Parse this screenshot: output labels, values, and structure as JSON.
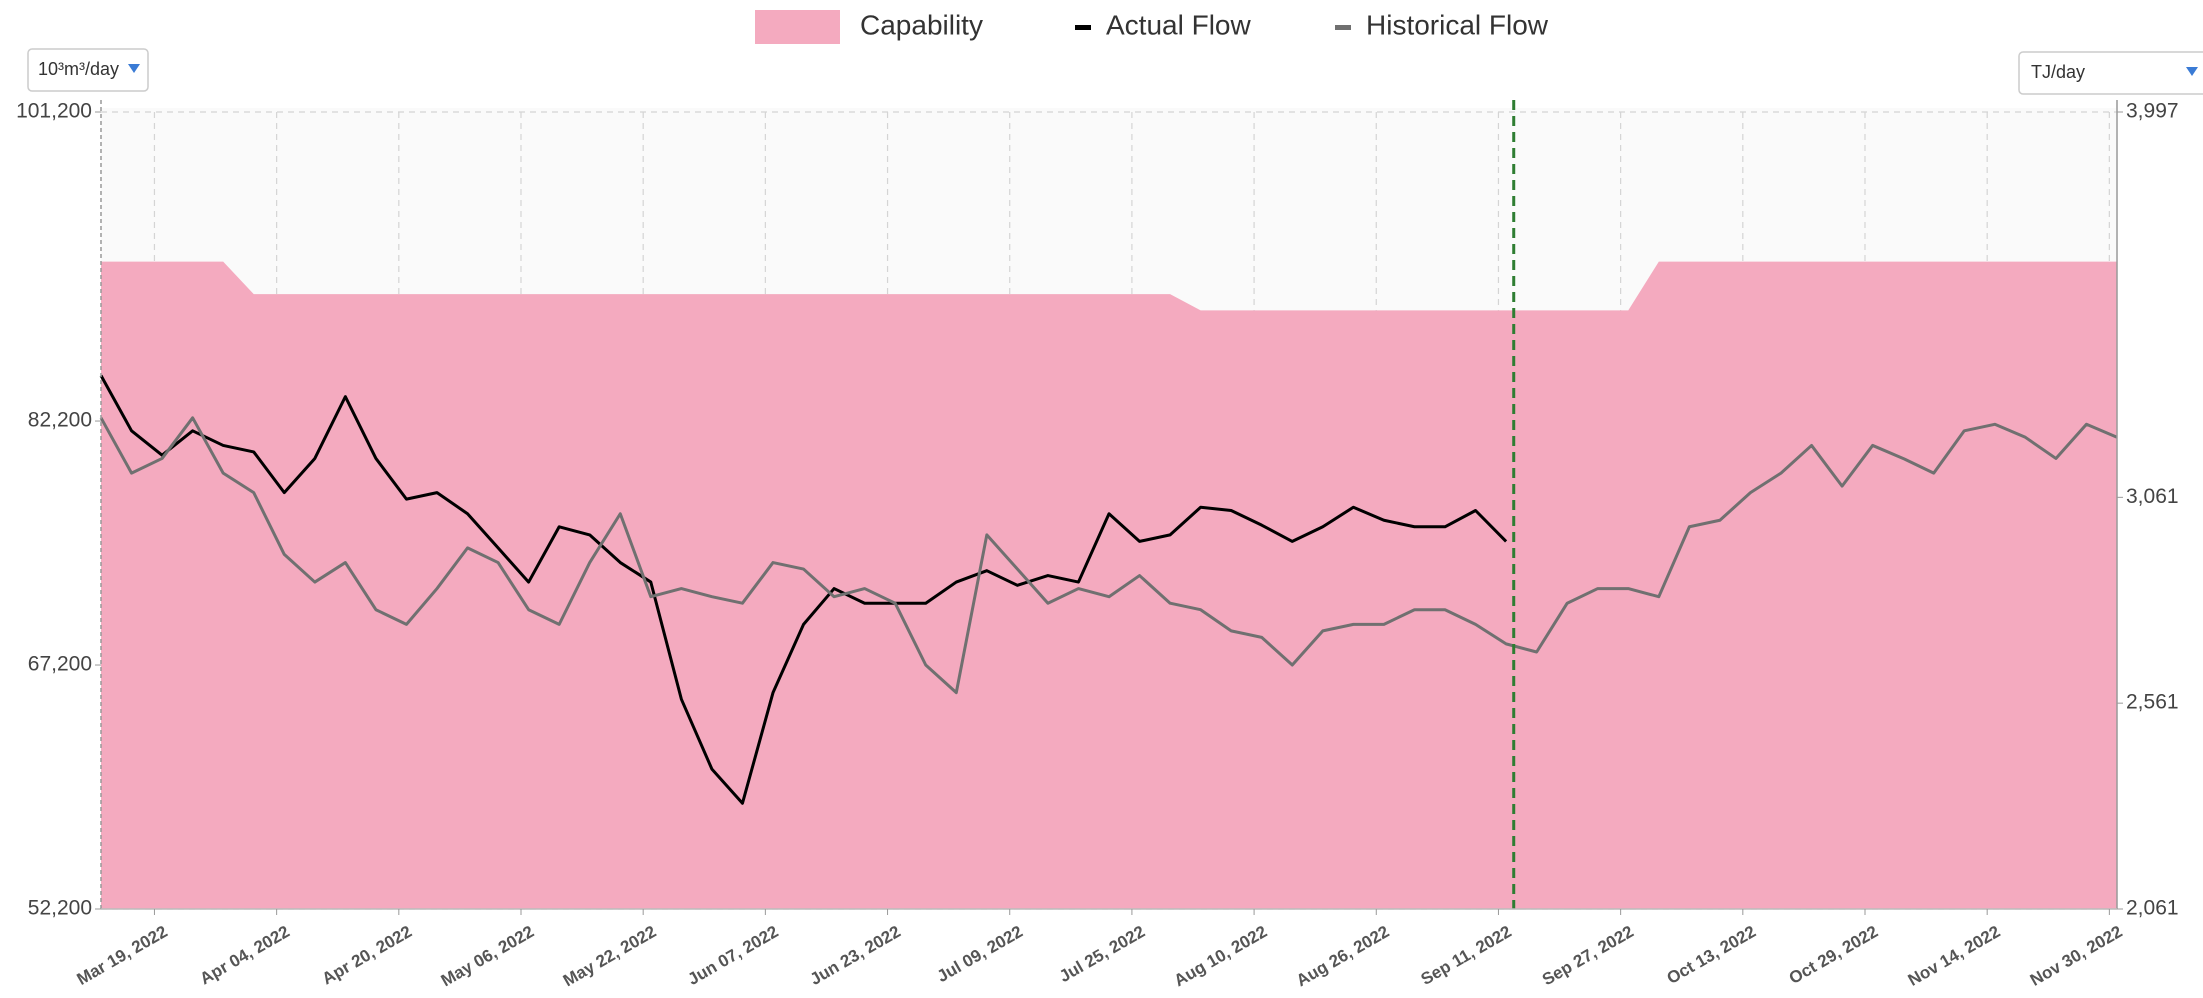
{
  "chart_data": {
    "type": "line",
    "units_left": "10³m³/day",
    "units_right": "TJ/day",
    "legend": "top",
    "grid": true,
    "marker_date": "2022-09-13",
    "marker_color": "#2e7d32",
    "xlim": [
      "2022-03-12",
      "2022-12-01"
    ],
    "xticks": [
      {
        "value": "2022-03-19",
        "label": "Mar 19, 2022"
      },
      {
        "value": "2022-04-04",
        "label": "Apr 04, 2022"
      },
      {
        "value": "2022-04-20",
        "label": "Apr 20, 2022"
      },
      {
        "value": "2022-05-06",
        "label": "May 06, 2022"
      },
      {
        "value": "2022-05-22",
        "label": "May 22, 2022"
      },
      {
        "value": "2022-06-07",
        "label": "Jun 07, 2022"
      },
      {
        "value": "2022-06-23",
        "label": "Jun 23, 2022"
      },
      {
        "value": "2022-07-09",
        "label": "Jul 09, 2022"
      },
      {
        "value": "2022-07-25",
        "label": "Jul 25, 2022"
      },
      {
        "value": "2022-08-10",
        "label": "Aug 10, 2022"
      },
      {
        "value": "2022-08-26",
        "label": "Aug 26, 2022"
      },
      {
        "value": "2022-09-11",
        "label": "Sep 11, 2022"
      },
      {
        "value": "2022-09-27",
        "label": "Sep 27, 2022"
      },
      {
        "value": "2022-10-13",
        "label": "Oct 13, 2022"
      },
      {
        "value": "2022-10-29",
        "label": "Oct 29, 2022"
      },
      {
        "value": "2022-11-14",
        "label": "Nov 14, 2022"
      },
      {
        "value": "2022-11-30",
        "label": "Nov 30, 2022"
      }
    ],
    "ylim": [
      52200,
      101200
    ],
    "yticks": [
      {
        "value": 52200,
        "label": "52,200"
      },
      {
        "value": 67200,
        "label": "67,200"
      },
      {
        "value": 82200,
        "label": "82,200"
      },
      {
        "value": 101200,
        "label": "101,200"
      }
    ],
    "y2lim": [
      2061,
      3997
    ],
    "y2ticks": [
      {
        "value": 2061,
        "label": "2,061"
      },
      {
        "value": 2561,
        "label": "2,561"
      },
      {
        "value": 3061,
        "label": "3,061"
      },
      {
        "value": 3997,
        "label": "3,997"
      }
    ],
    "x": [
      "2022-03-12",
      "2022-03-16",
      "2022-03-20",
      "2022-03-24",
      "2022-03-28",
      "2022-04-01",
      "2022-04-05",
      "2022-04-09",
      "2022-04-13",
      "2022-04-17",
      "2022-04-21",
      "2022-04-25",
      "2022-04-29",
      "2022-05-03",
      "2022-05-07",
      "2022-05-11",
      "2022-05-15",
      "2022-05-19",
      "2022-05-23",
      "2022-05-27",
      "2022-05-31",
      "2022-06-04",
      "2022-06-08",
      "2022-06-12",
      "2022-06-16",
      "2022-06-20",
      "2022-06-24",
      "2022-06-28",
      "2022-07-02",
      "2022-07-06",
      "2022-07-10",
      "2022-07-14",
      "2022-07-18",
      "2022-07-22",
      "2022-07-26",
      "2022-07-30",
      "2022-08-03",
      "2022-08-07",
      "2022-08-11",
      "2022-08-15",
      "2022-08-19",
      "2022-08-23",
      "2022-08-27",
      "2022-08-31",
      "2022-09-04",
      "2022-09-08",
      "2022-09-12",
      "2022-09-16",
      "2022-09-20",
      "2022-09-24",
      "2022-09-28",
      "2022-10-02",
      "2022-10-06",
      "2022-10-10",
      "2022-10-14",
      "2022-10-18",
      "2022-10-22",
      "2022-10-26",
      "2022-10-30",
      "2022-11-03",
      "2022-11-07",
      "2022-11-11",
      "2022-11-15",
      "2022-11-19",
      "2022-11-23",
      "2022-11-27",
      "2022-12-01"
    ],
    "series": [
      {
        "name": "Capability",
        "type": "area",
        "color": "#f4aabf",
        "values": [
          92000,
          92000,
          92000,
          92000,
          92000,
          90000,
          90000,
          90000,
          90000,
          90000,
          90000,
          90000,
          90000,
          90000,
          90000,
          90000,
          90000,
          90000,
          90000,
          90000,
          90000,
          90000,
          90000,
          90000,
          90000,
          90000,
          90000,
          90000,
          90000,
          90000,
          90000,
          90000,
          90000,
          90000,
          90000,
          90000,
          89000,
          89000,
          89000,
          89000,
          89000,
          89000,
          89000,
          89000,
          89000,
          89000,
          89000,
          89000,
          89000,
          89000,
          89000,
          92000,
          92000,
          92000,
          92000,
          92000,
          92000,
          92000,
          92000,
          92000,
          92000,
          92000,
          92000,
          92000,
          92000,
          92000,
          92000
        ]
      },
      {
        "name": "Actual Flow",
        "type": "line",
        "color": "#000000",
        "values": [
          85000,
          81600,
          80100,
          81600,
          80700,
          80300,
          77800,
          79900,
          83700,
          79900,
          77400,
          77800,
          76500,
          74400,
          72300,
          75700,
          75200,
          73500,
          72300,
          65100,
          60800,
          58700,
          65500,
          69700,
          71900,
          71000,
          71000,
          71000,
          72300,
          73000,
          72100,
          72700,
          72300,
          76500,
          74800,
          75200,
          76900,
          76700,
          75800,
          74800,
          75700,
          76900,
          76100,
          75700,
          75700,
          76700,
          74800,
          null,
          null,
          null,
          null,
          null,
          null,
          null,
          null,
          null,
          null,
          null,
          null,
          null,
          null,
          null,
          null,
          null,
          null,
          null,
          null
        ]
      },
      {
        "name": "Historical Flow",
        "type": "line",
        "color": "#707070",
        "values": [
          82400,
          79000,
          79900,
          82400,
          79000,
          77800,
          74000,
          72300,
          73500,
          70600,
          69700,
          71900,
          74400,
          73500,
          70600,
          69700,
          73500,
          76500,
          71400,
          71900,
          71400,
          71000,
          73500,
          73100,
          71400,
          71900,
          71000,
          67200,
          65500,
          75200,
          73100,
          71000,
          71900,
          71400,
          72700,
          71000,
          70600,
          69300,
          68900,
          67200,
          69300,
          69700,
          69700,
          70600,
          70600,
          69700,
          68500,
          68000,
          71000,
          71900,
          71900,
          71400,
          75700,
          76100,
          77800,
          79000,
          80700,
          78200,
          80700,
          79900,
          79000,
          81600,
          82000,
          81200,
          79900,
          82000,
          81200
        ]
      }
    ]
  }
}
